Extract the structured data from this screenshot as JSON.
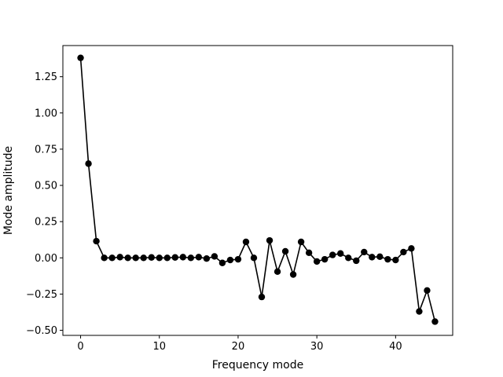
{
  "chart_data": {
    "type": "line",
    "title": "",
    "xlabel": "Frequency mode",
    "ylabel": "Mode amplitude",
    "xlim": [
      -2.25,
      47.25
    ],
    "ylim": [
      -0.535,
      1.465
    ],
    "xticks": [
      0,
      10,
      20,
      30,
      40
    ],
    "xtick_labels": [
      "0",
      "10",
      "20",
      "30",
      "40"
    ],
    "yticks": [
      -0.5,
      -0.25,
      0.0,
      0.25,
      0.5,
      0.75,
      1.0,
      1.25
    ],
    "ytick_labels": [
      "−0.50",
      "−0.25",
      "0.00",
      "0.25",
      "0.50",
      "0.75",
      "1.00",
      "1.25"
    ],
    "grid": false,
    "series": [
      {
        "color": "#000000",
        "marker": "circle",
        "x": [
          0,
          1,
          2,
          3,
          4,
          5,
          6,
          7,
          8,
          9,
          10,
          11,
          12,
          13,
          14,
          15,
          16,
          17,
          18,
          19,
          20,
          21,
          22,
          23,
          24,
          25,
          26,
          27,
          28,
          29,
          30,
          31,
          32,
          33,
          34,
          35,
          36,
          37,
          38,
          39,
          40,
          41,
          42,
          43,
          44,
          45
        ],
        "y": [
          1.38,
          0.65,
          0.115,
          0.0,
          0.0,
          0.005,
          0.0,
          0.0,
          0.0,
          0.003,
          0.0,
          0.0,
          0.003,
          0.005,
          0.0,
          0.005,
          -0.005,
          0.01,
          -0.035,
          -0.015,
          -0.01,
          0.11,
          0.0,
          -0.27,
          0.12,
          -0.095,
          0.045,
          -0.115,
          0.11,
          0.035,
          -0.025,
          -0.01,
          0.02,
          0.03,
          0.0,
          -0.02,
          0.04,
          0.005,
          0.008,
          -0.01,
          -0.015,
          0.04,
          0.065,
          -0.37,
          -0.225,
          -0.44
        ]
      }
    ]
  }
}
